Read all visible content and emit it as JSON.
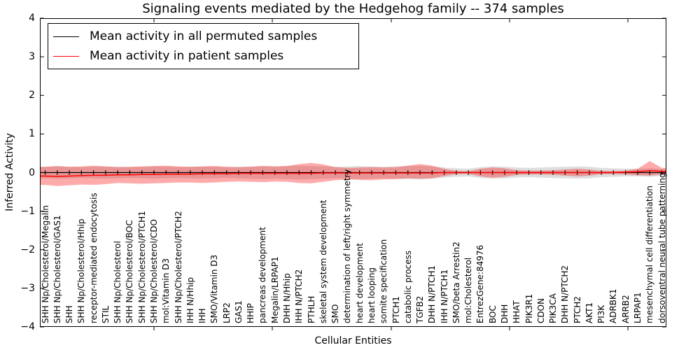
{
  "figure": {
    "title": "Signaling events mediated by the Hedgehog family -- 374 samples",
    "xlabel": "Cellular Entities",
    "ylabel": "Inferred Activity"
  },
  "legend": {
    "items": [
      {
        "label": "Mean activity in all permuted samples",
        "color": "#000000"
      },
      {
        "label": "Mean activity in patient samples",
        "color": "#ff0000"
      }
    ]
  },
  "chart_data": {
    "type": "line",
    "title": "Signaling events mediated by the Hedgehog family -- 374 samples",
    "xlabel": "Cellular Entities",
    "ylabel": "Inferred Activity",
    "ylim": [
      -4,
      4
    ],
    "ytick_labels": [
      "4",
      "3",
      "2",
      "1",
      "0",
      "−1",
      "−2",
      "−3",
      "−4"
    ],
    "grid": false,
    "legend_position": "upper left",
    "categories": [
      "SHH Np/Cholesterol/Megalin",
      "SHH Np/Cholesterol/GAS1",
      "SHH",
      "SHH Np/Cholesterol/Hhip",
      "receptor-mediated endocytosis",
      "STIL",
      "SHH Np/Cholesterol",
      "SHH Np/Cholesterol/BOC",
      "SHH Np/Cholesterol/PTCH1",
      "SHH Np/Cholesterol/CDO",
      "mol:Vitamin D3",
      "SHH Np/Cholesterol/PTCH2",
      "IHH N/Hhip",
      "IHH",
      "SMO/Vitamin D3",
      "LRP2",
      "GAS1",
      "HHIP",
      "pancreas development",
      "Megalin/LRPAP1",
      "DHH N/Hhip",
      "IHH N/PTCH2",
      "PTHLH",
      "skeletal system development",
      "SMO",
      "determination of left/right symmetry",
      "heart development",
      "heart looping",
      "somite specification",
      "PTCH1",
      "catabolic process",
      "TGFB2",
      "DHH N/PTCH1",
      "IHH N/PTCH1",
      "SMO/beta Arrestin2",
      "mol:Cholesterol",
      "EntrezGene:84976",
      "BOC",
      "DHH",
      "HHAT",
      "PIK3R1",
      "CDON",
      "PIK3CA",
      "DHH N/PTCH2",
      "PTCH2",
      "AKT1",
      "PI3K",
      "ADRBK1",
      "ARRB2",
      "LRPAP1",
      "mesenchymal cell differentiation",
      "dorsoventral neural tube patterning"
    ],
    "series": [
      {
        "name": "Mean activity in all permuted samples",
        "color": "#000000",
        "marker": "vline",
        "values": [
          0,
          0,
          0,
          0,
          0,
          0,
          0,
          0,
          0,
          0,
          0,
          0,
          0,
          0,
          0,
          0,
          0,
          0,
          0,
          0,
          0,
          0,
          0,
          0,
          0,
          0,
          0,
          0,
          0,
          0,
          0,
          0,
          0,
          0,
          0,
          0,
          0,
          0,
          0,
          0,
          0,
          0,
          0,
          0,
          0,
          0,
          0,
          0,
          0,
          0,
          0,
          0
        ]
      },
      {
        "name": "Mean activity in patient samples",
        "color": "#ff0000",
        "marker": "none",
        "values": [
          -0.09,
          -0.1,
          -0.09,
          -0.08,
          -0.07,
          -0.07,
          -0.06,
          -0.06,
          -0.05,
          -0.05,
          -0.04,
          -0.04,
          -0.04,
          -0.03,
          -0.03,
          -0.03,
          -0.02,
          -0.02,
          -0.02,
          -0.02,
          -0.02,
          -0.02,
          -0.02,
          -0.01,
          -0.01,
          -0.01,
          -0.01,
          -0.01,
          -0.01,
          -0.01,
          -0.01,
          -0.01,
          -0.01,
          0,
          0,
          0,
          0,
          0,
          0,
          0,
          0,
          0,
          0,
          0,
          0,
          0,
          0,
          0,
          0.01,
          0.02,
          0.05,
          0.03
        ]
      }
    ],
    "bands": [
      {
        "name": "permuted-samples-range",
        "color": "rgba(0,0,0,0.13)",
        "upper": [
          0.15,
          0.16,
          0.15,
          0.14,
          0.15,
          0.16,
          0.15,
          0.14,
          0.15,
          0.16,
          0.15,
          0.14,
          0.15,
          0.16,
          0.15,
          0.14,
          0.15,
          0.16,
          0.17,
          0.16,
          0.17,
          0.18,
          0.17,
          0.16,
          0.15,
          0.16,
          0.17,
          0.16,
          0.15,
          0.16,
          0.17,
          0.18,
          0.16,
          0.13,
          0.11,
          0.1,
          0.14,
          0.16,
          0.15,
          0.13,
          0.12,
          0.13,
          0.14,
          0.15,
          0.16,
          0.15,
          0.12,
          0.11,
          0.1,
          0.1,
          0.11,
          0.09
        ],
        "lower": [
          -0.15,
          -0.16,
          -0.15,
          -0.14,
          -0.15,
          -0.16,
          -0.15,
          -0.14,
          -0.15,
          -0.16,
          -0.15,
          -0.14,
          -0.15,
          -0.16,
          -0.15,
          -0.14,
          -0.15,
          -0.16,
          -0.17,
          -0.16,
          -0.17,
          -0.18,
          -0.17,
          -0.16,
          -0.15,
          -0.16,
          -0.17,
          -0.16,
          -0.15,
          -0.16,
          -0.17,
          -0.18,
          -0.16,
          -0.13,
          -0.11,
          -0.1,
          -0.14,
          -0.16,
          -0.15,
          -0.13,
          -0.12,
          -0.13,
          -0.14,
          -0.15,
          -0.16,
          -0.15,
          -0.12,
          -0.11,
          -0.1,
          -0.1,
          -0.11,
          -0.09
        ]
      },
      {
        "name": "patient-samples-range",
        "color": "rgba(255,0,0,0.33)",
        "upper": [
          0.15,
          0.17,
          0.15,
          0.16,
          0.18,
          0.16,
          0.14,
          0.15,
          0.16,
          0.17,
          0.18,
          0.16,
          0.15,
          0.16,
          0.17,
          0.15,
          0.14,
          0.15,
          0.17,
          0.16,
          0.17,
          0.22,
          0.25,
          0.21,
          0.14,
          0.12,
          0.13,
          0.14,
          0.13,
          0.14,
          0.18,
          0.22,
          0.18,
          0.1,
          0.04,
          0.03,
          0.1,
          0.13,
          0.11,
          0.06,
          0.05,
          0.05,
          0.06,
          0.08,
          0.1,
          0.08,
          0.04,
          0.04,
          0.05,
          0.1,
          0.3,
          0.12
        ],
        "lower": [
          -0.32,
          -0.35,
          -0.33,
          -0.31,
          -0.32,
          -0.3,
          -0.27,
          -0.28,
          -0.29,
          -0.28,
          -0.27,
          -0.26,
          -0.26,
          -0.27,
          -0.26,
          -0.24,
          -0.23,
          -0.24,
          -0.25,
          -0.23,
          -0.24,
          -0.27,
          -0.28,
          -0.24,
          -0.2,
          -0.18,
          -0.19,
          -0.2,
          -0.18,
          -0.17,
          -0.15,
          -0.16,
          -0.15,
          -0.09,
          -0.04,
          -0.03,
          -0.1,
          -0.13,
          -0.11,
          -0.06,
          -0.05,
          -0.05,
          -0.06,
          -0.08,
          -0.1,
          -0.08,
          -0.04,
          -0.04,
          -0.05,
          -0.07,
          -0.08,
          -0.05
        ]
      }
    ]
  }
}
